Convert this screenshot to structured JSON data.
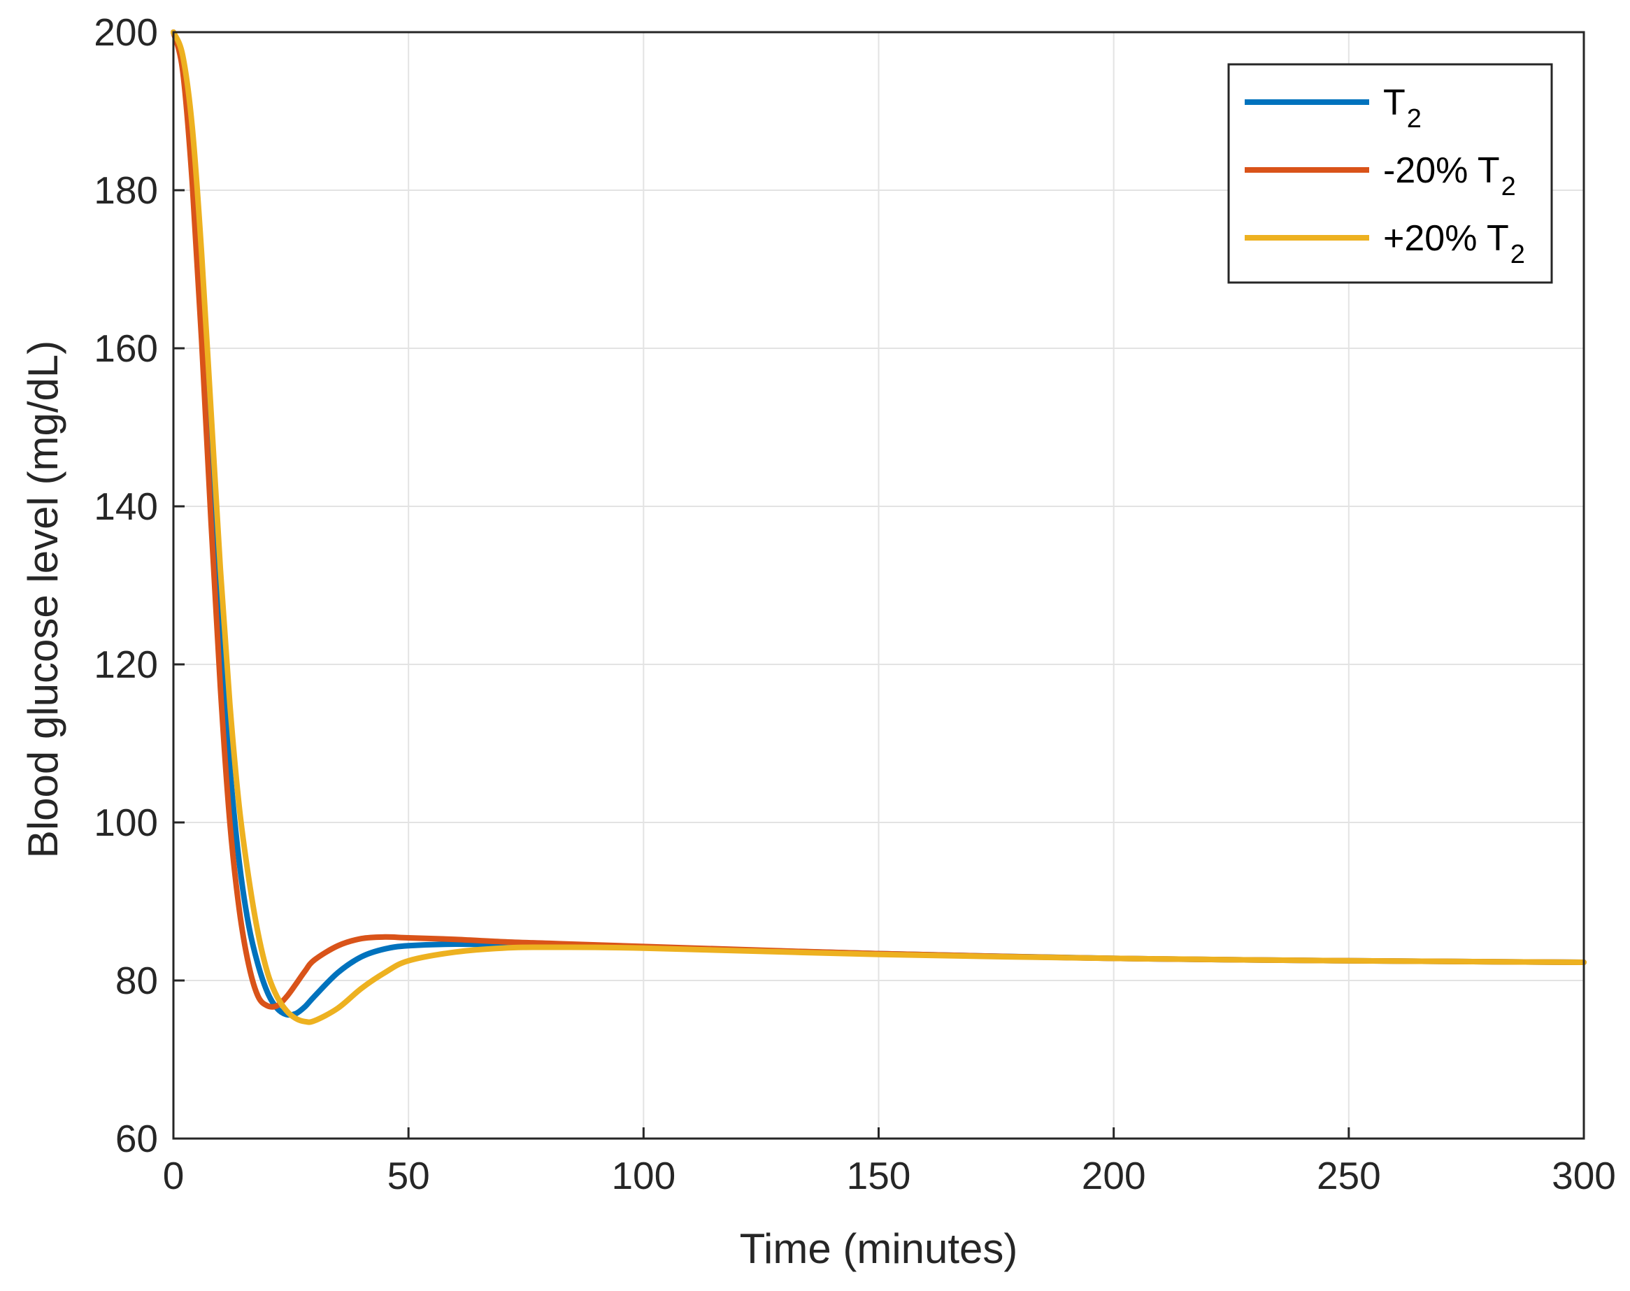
{
  "chart_data": {
    "type": "line",
    "xlabel": "Time (minutes)",
    "ylabel": "Blood glucose level (mg/dL)",
    "xlim": [
      0,
      300
    ],
    "ylim": [
      60,
      200
    ],
    "xticks": [
      "0",
      "50",
      "100",
      "150",
      "200",
      "250",
      "300"
    ],
    "yticks": [
      "60",
      "80",
      "100",
      "120",
      "140",
      "160",
      "180",
      "200"
    ],
    "grid": true,
    "legend_position": "top-right",
    "series": [
      {
        "name": "T2",
        "legend_main": "T",
        "legend_sub": "2",
        "color": "#0072BD",
        "x": [
          0,
          2,
          4,
          6,
          8,
          10,
          12,
          14,
          16,
          18,
          20,
          22,
          24,
          26,
          28,
          30,
          35,
          40,
          45,
          50,
          60,
          70,
          80,
          100,
          150,
          200,
          250,
          300
        ],
        "y": [
          200,
          196,
          184,
          166,
          145,
          124,
          107,
          95,
          87,
          82,
          78.5,
          76.5,
          75.7,
          75.8,
          76.7,
          78,
          81,
          83,
          84,
          84.4,
          84.6,
          84.5,
          84.4,
          84.2,
          83.4,
          82.8,
          82.5,
          82.3
        ]
      },
      {
        "name": "-20% T2",
        "legend_main": "-20% T",
        "legend_sub": "2",
        "color": "#D95319",
        "x": [
          0,
          2,
          4,
          6,
          8,
          10,
          12,
          14,
          16,
          18,
          20,
          22,
          24,
          26,
          28,
          30,
          35,
          40,
          45,
          50,
          60,
          70,
          80,
          100,
          150,
          200,
          250,
          300
        ],
        "y": [
          200,
          195,
          181,
          161,
          138,
          117,
          100,
          89,
          82,
          78,
          76.8,
          76.8,
          77.9,
          79.5,
          81.2,
          82.6,
          84.4,
          85.3,
          85.5,
          85.4,
          85.2,
          84.9,
          84.7,
          84.3,
          83.4,
          82.8,
          82.5,
          82.3
        ]
      },
      {
        "name": "+20% T2",
        "legend_main": "+20% T",
        "legend_sub": "2",
        "color": "#EDB120",
        "x": [
          0,
          2,
          4,
          6,
          8,
          10,
          12,
          14,
          16,
          18,
          20,
          22,
          24,
          26,
          28,
          30,
          35,
          40,
          45,
          50,
          60,
          70,
          80,
          100,
          150,
          200,
          250,
          300
        ],
        "y": [
          200,
          197,
          188,
          172,
          152,
          132,
          115,
          102,
          93,
          86,
          81,
          78,
          76.2,
          75.2,
          74.8,
          74.9,
          76.5,
          79,
          81,
          82.5,
          83.6,
          84.1,
          84.2,
          84.1,
          83.3,
          82.8,
          82.5,
          82.3
        ]
      }
    ]
  }
}
